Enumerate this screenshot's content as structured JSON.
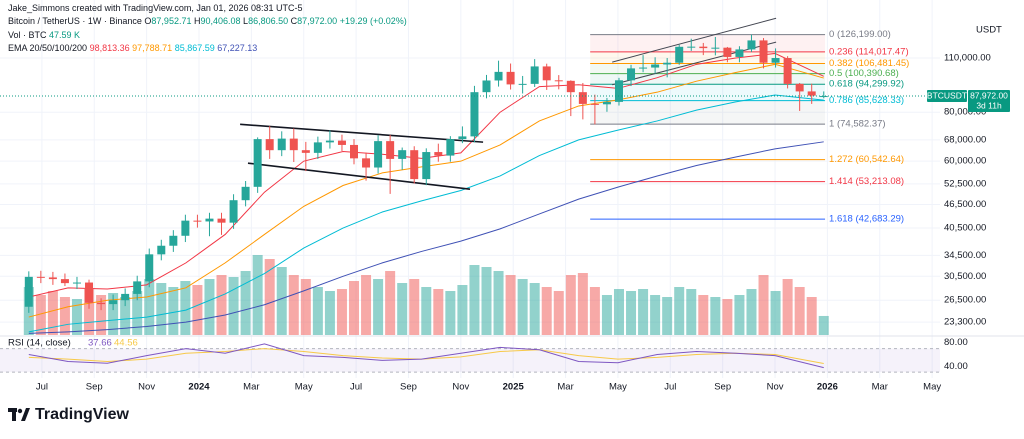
{
  "header": {
    "attribution": "Jake_Simmons created with TradingView.com, Jan 01, 2026 08:31 UTC-5",
    "symbol": "Bitcoin / TetherUS · 1W · Binance",
    "ohlc": [
      [
        "O",
        "87,952.71"
      ],
      [
        "H",
        "90,406.08"
      ],
      [
        "L",
        "86,806.50"
      ],
      [
        "C",
        "87,972.00"
      ]
    ],
    "change": "+19.29 (+0.02%)",
    "volume_label": "Vol · BTC",
    "volume_value": "47.59 K",
    "ema_label": "EMA 20/50/100/200",
    "ema_values": [
      "98,813.36",
      "97,788.71",
      "85,867.59",
      "67,227.13"
    ],
    "rsi_label": "RSI (14, close)",
    "brand": "TradingView"
  },
  "chart_data": {
    "type": "candlestick",
    "currency": "USDT",
    "log_scale": true,
    "grid": true,
    "up_color": "#26a69a",
    "down_color": "#ef5350",
    "x": [
      5.5,
      5.96,
      6.42,
      6.88,
      7.34,
      7.8,
      8.26,
      8.72,
      9.18,
      9.64,
      10.1,
      10.56,
      11.02,
      11.48,
      11.94,
      12.4,
      12.86,
      13.32,
      13.78,
      14.24,
      14.7,
      15.16,
      15.62,
      16.08,
      16.54,
      17.0,
      17.46,
      17.92,
      18.38,
      18.84,
      19.3,
      19.76,
      20.22,
      20.68,
      21.14,
      21.6,
      22.06,
      22.52,
      22.98,
      23.44,
      23.9,
      24.36,
      24.82,
      25.28,
      25.74,
      26.2,
      26.66,
      27.12,
      27.58,
      28.04,
      28.5,
      28.96,
      29.42,
      29.88,
      30.34,
      30.8,
      31.26,
      31.72,
      32.18,
      32.64,
      33.1,
      33.56,
      34.02,
      34.48,
      34.94,
      35.4,
      35.86
    ],
    "open": [
      25500,
      30400,
      30300,
      30000,
      29300,
      29400,
      26100,
      25900,
      26500,
      27500,
      29600,
      34700,
      36500,
      38700,
      42300,
      42100,
      42800,
      41800,
      47700,
      51600,
      68300,
      64000,
      68500,
      64000,
      63000,
      67000,
      67700,
      66000,
      61000,
      57800,
      67500,
      60800,
      64000,
      54000,
      63300,
      62000,
      68300,
      69400,
      90000,
      96400,
      101400,
      94200,
      94500,
      104700,
      96500,
      96200,
      90000,
      84000,
      83800,
      85000,
      96500,
      103500,
      104000,
      105900,
      107000,
      117500,
      117600,
      116600,
      116900,
      110700,
      115700,
      122000,
      107000,
      110000,
      94500,
      90400,
      87952.71
    ],
    "high": [
      31400,
      31500,
      31300,
      31000,
      30400,
      29900,
      26800,
      27400,
      28400,
      30600,
      35900,
      37800,
      40000,
      43800,
      43800,
      44300,
      44300,
      49400,
      53400,
      69000,
      73700,
      71500,
      72700,
      67200,
      69300,
      71900,
      70100,
      68300,
      63100,
      69900,
      70000,
      65000,
      65500,
      64700,
      66500,
      69500,
      73600,
      93400,
      99600,
      108300,
      106500,
      99000,
      109300,
      106400,
      99500,
      96500,
      95000,
      88700,
      87000,
      97900,
      105700,
      111900,
      110500,
      110000,
      118900,
      123200,
      120200,
      124500,
      117400,
      117900,
      126200,
      123700,
      116400,
      111200,
      95000,
      94600,
      90406.08
    ],
    "low": [
      24600,
      29300,
      29000,
      28800,
      28300,
      25200,
      25000,
      25000,
      25600,
      26500,
      28600,
      33500,
      35200,
      37300,
      40600,
      38600,
      38900,
      40300,
      46000,
      49800,
      60800,
      61800,
      59700,
      56600,
      60800,
      64600,
      63700,
      58900,
      53500,
      55800,
      49500,
      57000,
      52600,
      52100,
      59800,
      59800,
      66700,
      67000,
      86800,
      93000,
      91400,
      89300,
      92800,
      91200,
      91500,
      78200,
      76700,
      74500,
      80200,
      83200,
      93300,
      101200,
      100400,
      98200,
      105700,
      114700,
      111900,
      111700,
      107300,
      107300,
      114000,
      103500,
      104000,
      92000,
      80600,
      84000,
      86806.5
    ],
    "close": [
      30400,
      30300,
      30000,
      29300,
      29400,
      26100,
      25900,
      26500,
      27500,
      29600,
      34700,
      36500,
      38700,
      42300,
      42100,
      42800,
      41800,
      47700,
      51600,
      68300,
      64000,
      68500,
      64000,
      63000,
      67000,
      67700,
      66000,
      61000,
      57800,
      67500,
      60800,
      64000,
      54000,
      63300,
      62000,
      68300,
      69400,
      90000,
      96400,
      101400,
      94200,
      94500,
      104700,
      96500,
      96200,
      90000,
      84000,
      83800,
      85000,
      96500,
      103500,
      104000,
      105900,
      107000,
      117500,
      117600,
      116600,
      116900,
      110700,
      115700,
      122000,
      107000,
      110000,
      94500,
      90400,
      88200,
      87972
    ],
    "volume": {
      "values": [
        120,
        100,
        110,
        95,
        90,
        115,
        100,
        105,
        95,
        110,
        140,
        130,
        120,
        135,
        125,
        140,
        150,
        145,
        160,
        200,
        190,
        170,
        150,
        140,
        120,
        110,
        115,
        135,
        150,
        140,
        160,
        130,
        140,
        120,
        115,
        110,
        125,
        175,
        170,
        160,
        150,
        140,
        130,
        120,
        110,
        150,
        155,
        120,
        100,
        115,
        110,
        115,
        100,
        95,
        120,
        115,
        100,
        95,
        90,
        100,
        115,
        150,
        110,
        140,
        120,
        95,
        47.59
      ]
    },
    "xlim": [
      4.4,
      40.3
    ],
    "ylim": [
      21600,
      154700
    ],
    "xticks": [
      {
        "value": 6,
        "label": "Jul"
      },
      {
        "value": 8,
        "label": "Sep"
      },
      {
        "value": 10,
        "label": "Nov"
      },
      {
        "value": 12,
        "label": "2024"
      },
      {
        "value": 14,
        "label": "Mar"
      },
      {
        "value": 16,
        "label": "May"
      },
      {
        "value": 18,
        "label": "Jul"
      },
      {
        "value": 20,
        "label": "Sep"
      },
      {
        "value": 22,
        "label": "Nov"
      },
      {
        "value": 24,
        "label": "2025"
      },
      {
        "value": 26,
        "label": "Mar"
      },
      {
        "value": 28,
        "label": "May"
      },
      {
        "value": 30,
        "label": "Jul"
      },
      {
        "value": 32,
        "label": "Sep"
      },
      {
        "value": 34,
        "label": "Nov"
      },
      {
        "value": 36,
        "label": "2026"
      },
      {
        "value": 38,
        "label": "Mar"
      },
      {
        "value": 40,
        "label": "May"
      }
    ],
    "yticks": [
      {
        "value": 110000,
        "label": "110,000.00"
      },
      {
        "value": 80000,
        "label": "80,000.00"
      },
      {
        "value": 68000,
        "label": "68,000.00"
      },
      {
        "value": 60000,
        "label": "60,000.00"
      },
      {
        "value": 52500,
        "label": "52,500.00"
      },
      {
        "value": 46500,
        "label": "46,500.00"
      },
      {
        "value": 40500,
        "label": "40,500.00"
      },
      {
        "value": 34500,
        "label": "34,500.00"
      },
      {
        "value": 30500,
        "label": "30,500.00"
      },
      {
        "value": 26500,
        "label": "26,500.00"
      },
      {
        "value": 23300,
        "label": "23,300.00"
      }
    ],
    "last_price": {
      "symbol": "BTCUSDT",
      "value": 87972,
      "label": "87,972.00",
      "countdown": "3d 11h",
      "color": "#089981"
    },
    "ema": {
      "x": [
        5.5,
        7,
        8.5,
        10,
        11.5,
        13,
        14.5,
        16,
        17.5,
        19,
        20.5,
        22,
        23.5,
        25,
        26.5,
        28,
        29.5,
        31,
        32.5,
        34,
        35.86
      ],
      "series": [
        {
          "color": "#f23645",
          "values": [
            27000,
            28500,
            28300,
            29000,
            33000,
            39000,
            50000,
            60000,
            63500,
            62500,
            61000,
            63000,
            80000,
            93000,
            94000,
            92000,
            98000,
            106000,
            110000,
            113000,
            98813.36
          ]
        },
        {
          "color": "#ff9800",
          "values": [
            24000,
            25500,
            26500,
            27000,
            28500,
            33000,
            39000,
            46000,
            52000,
            56000,
            58000,
            60000,
            66000,
            76000,
            83000,
            86000,
            90000,
            96000,
            101000,
            106000,
            97788.71
          ]
        },
        {
          "color": "#00bcd4",
          "values": [
            22000,
            23000,
            23500,
            24000,
            25000,
            27500,
            31000,
            36000,
            40500,
            44500,
            47500,
            50500,
            55000,
            62000,
            68000,
            72000,
            76000,
            81000,
            85000,
            88500,
            85867.59
          ]
        },
        {
          "color": "#3f51b5",
          "values": [
            21800,
            22000,
            22300,
            22700,
            23300,
            24300,
            25800,
            28000,
            30500,
            33000,
            35300,
            37500,
            40300,
            44000,
            48000,
            51500,
            55000,
            58500,
            61500,
            64500,
            67227.13
          ]
        }
      ]
    },
    "fib": {
      "x": [
        26.94,
        35.91
      ],
      "prices": [
        126199.0,
        114017.47,
        106481.45,
        100390.68,
        94299.92,
        85628.33,
        74582.37,
        60542.64,
        53213.08,
        42683.29
      ],
      "labels": [
        "0 (126,199.00)",
        "0.236 (114,017.47)",
        "0.382 (106,481.45)",
        "0.5 (100,390.68)",
        "0.618 (94,299.92)",
        "0.786 (85,628.33)",
        "1 (74,582.37)",
        "1.272 (60,542.64)",
        "1.414 (53,213.08)",
        "1.618 (42,683.29)"
      ],
      "colors": [
        "#787b86",
        "#f23645",
        "#ff9800",
        "#4caf50",
        "#089981",
        "#00bcd4",
        "#787b86",
        "#ff9800",
        "#f23645",
        "#2962ff"
      ]
    },
    "trendlines": [
      {
        "x": [
          13.57,
          22.85
        ],
        "y": [
          74500,
          67100
        ],
        "color": "#131722"
      },
      {
        "x": [
          13.87,
          22.35
        ],
        "y": [
          59300,
          50900
        ],
        "color": "#131722"
      },
      {
        "x": [
          27.78,
          34.04
        ],
        "y": [
          107400,
          139000
        ],
        "color": "#434651"
      },
      {
        "x": [
          27.78,
          34.04
        ],
        "y": [
          94000,
          120800
        ],
        "color": "#434651"
      }
    ],
    "rsi": {
      "x": [
        5.5,
        7,
        8.5,
        10,
        11.5,
        13,
        14.5,
        16,
        17.5,
        19,
        20.5,
        22,
        23.5,
        25,
        26.5,
        28,
        29.5,
        31,
        32.5,
        34,
        35.86
      ],
      "values": [
        60,
        48,
        45,
        58,
        70,
        62,
        78,
        58,
        55,
        50,
        52,
        62,
        72,
        68,
        48,
        46,
        60,
        65,
        62,
        58,
        37.66
      ],
      "ma_values": [
        55,
        52,
        48,
        52,
        62,
        65,
        70,
        65,
        58,
        54,
        52,
        56,
        65,
        68,
        58,
        52,
        55,
        60,
        62,
        60,
        44.56
      ],
      "color": "#7e57c2",
      "ma_color": "#f7c948",
      "ylim": [
        20,
        88
      ],
      "band": [
        30,
        70
      ],
      "yticks": [
        {
          "value": 80,
          "label": "80.00"
        },
        {
          "value": 40,
          "label": "40.00"
        }
      ]
    }
  }
}
